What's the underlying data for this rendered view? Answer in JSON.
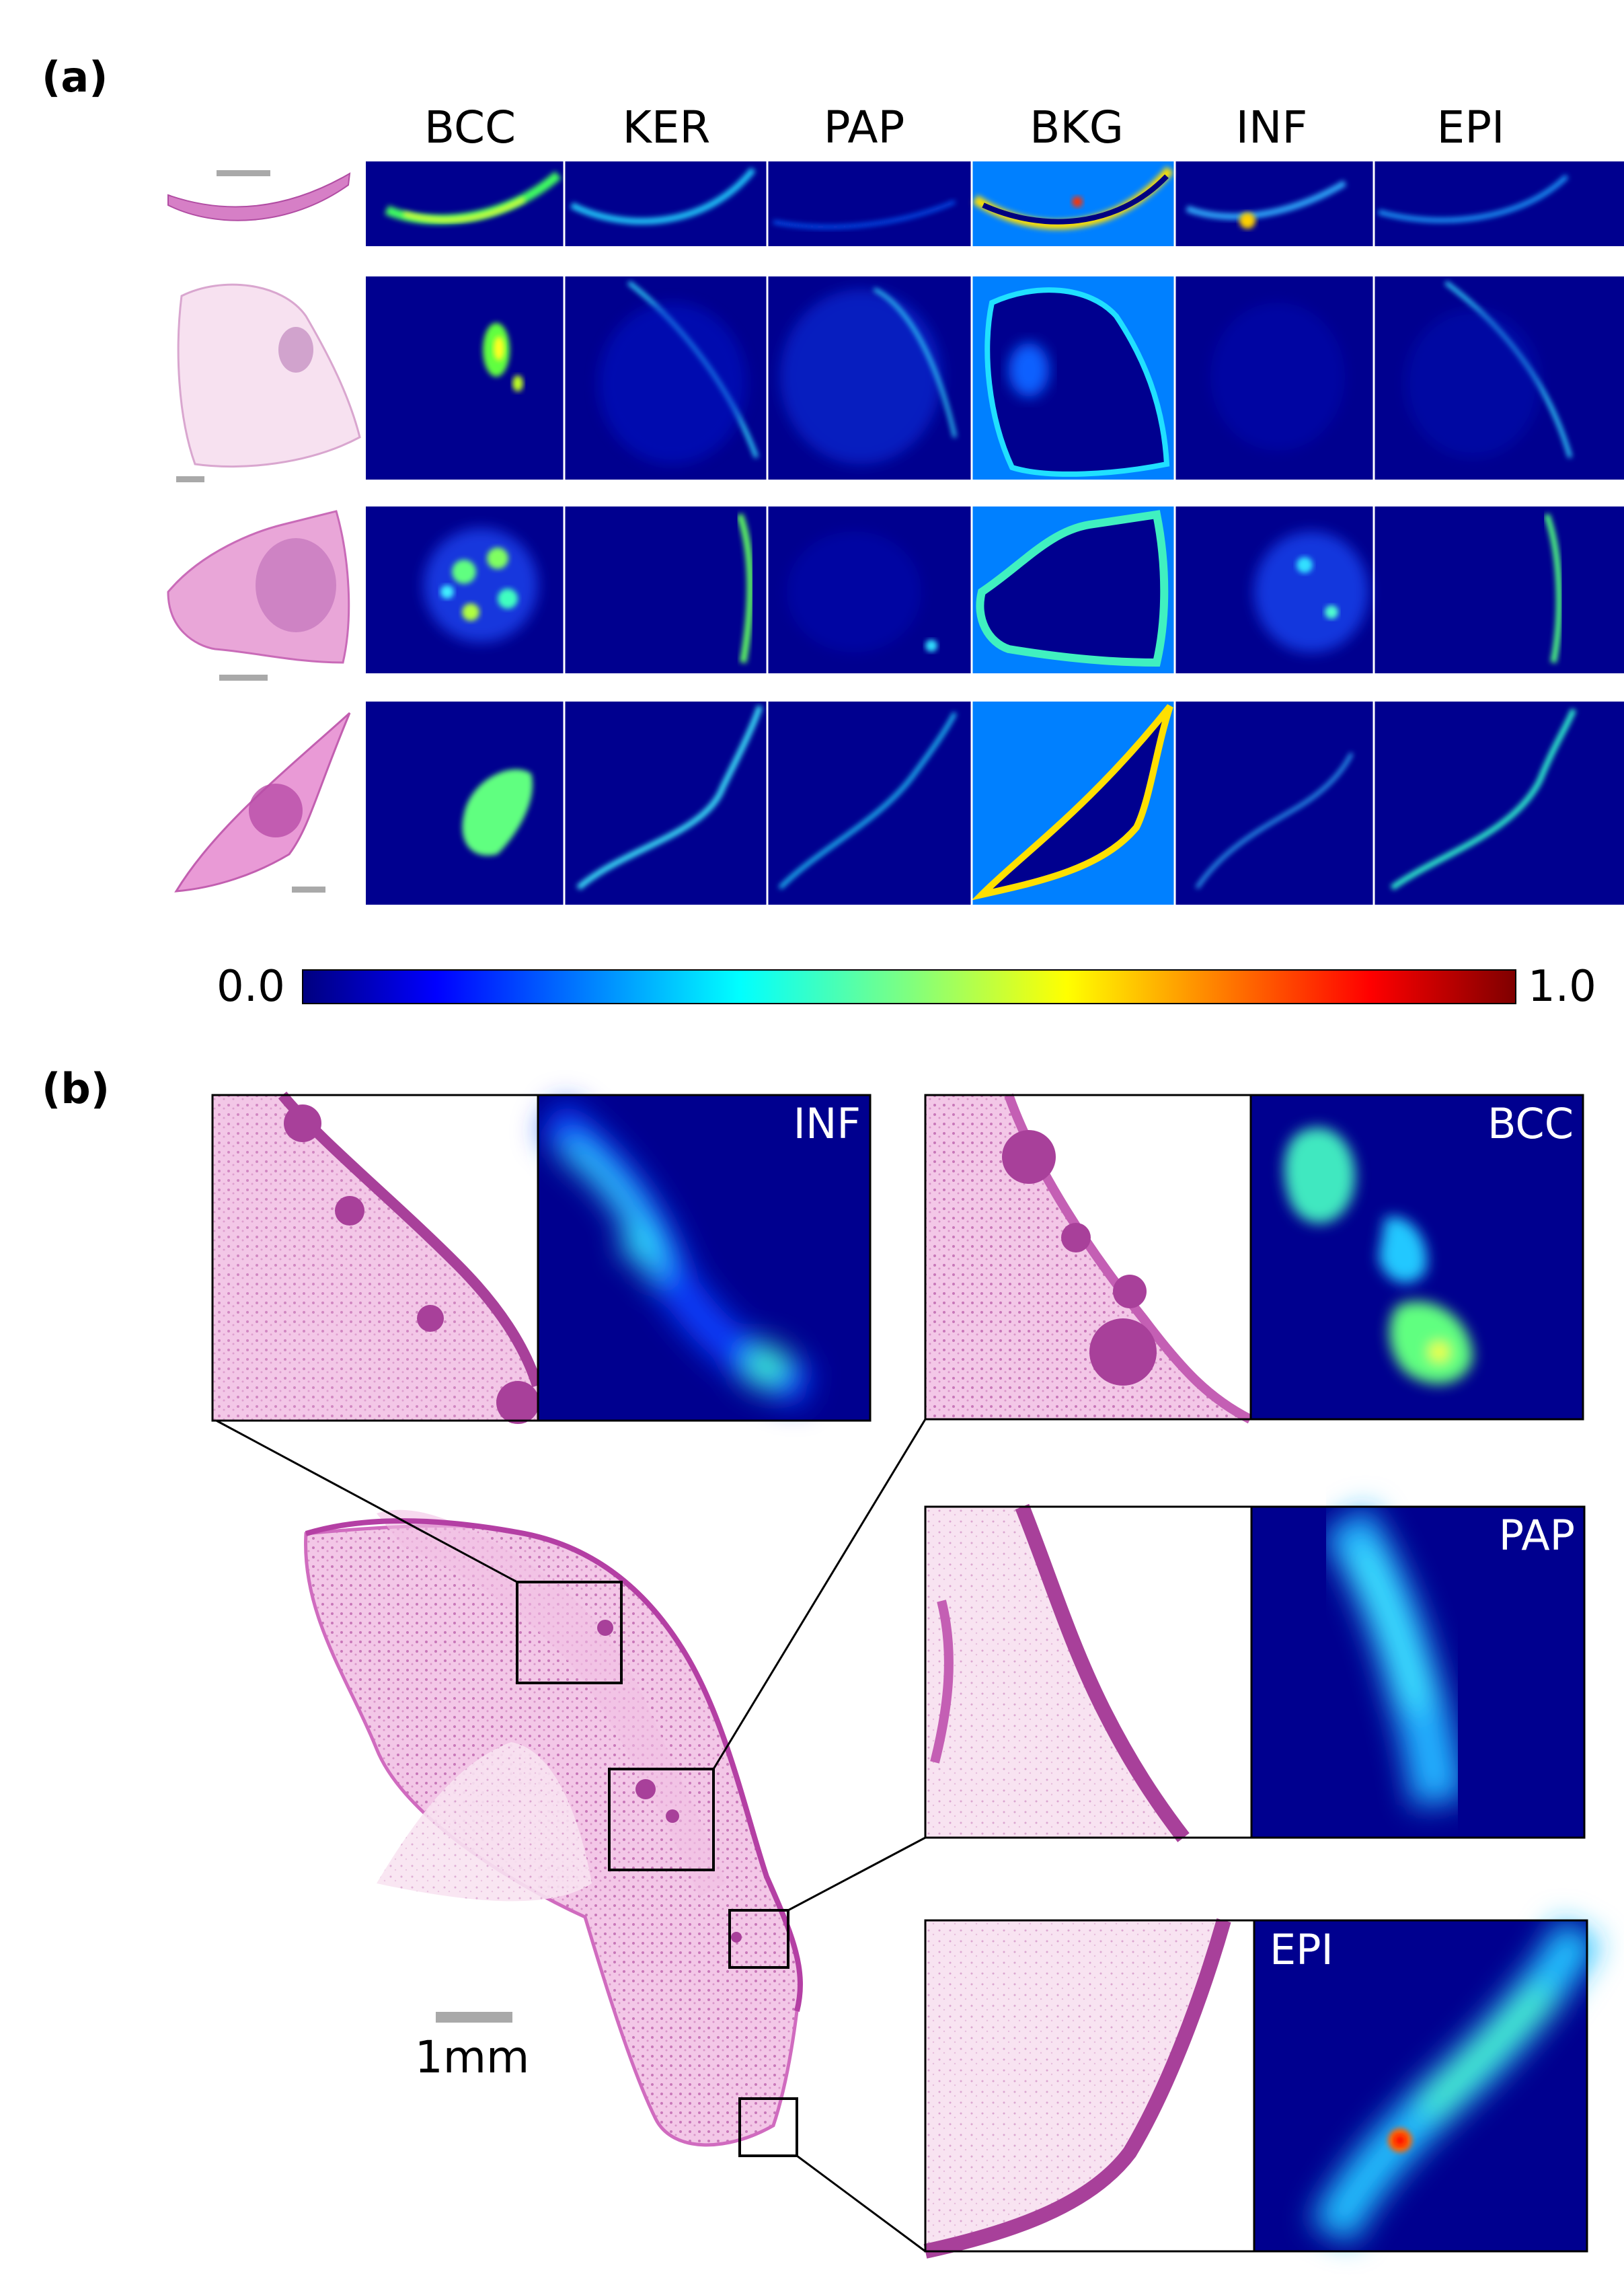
{
  "panel_a": {
    "label": "(a)",
    "columns": [
      "BCC",
      "KER",
      "PAP",
      "BKG",
      "INF",
      "EPI"
    ],
    "colorbar": {
      "min_label": "0.0",
      "max_label": "1.0",
      "colormap": "jet"
    }
  },
  "panel_b": {
    "label": "(b)",
    "insets": [
      {
        "label": "INF"
      },
      {
        "label": "BCC"
      },
      {
        "label": "PAP"
      },
      {
        "label": "EPI"
      }
    ],
    "scale_bar_label": "1mm"
  },
  "colors": {
    "heatmap_bg": "#00008f",
    "bkg_bg": "#0080ff",
    "tissue_pink": "#e9a6d8",
    "tissue_light": "#f7eaf3",
    "tissue_dark": "#a8409a",
    "scale_bar": "#a9a9a9"
  }
}
